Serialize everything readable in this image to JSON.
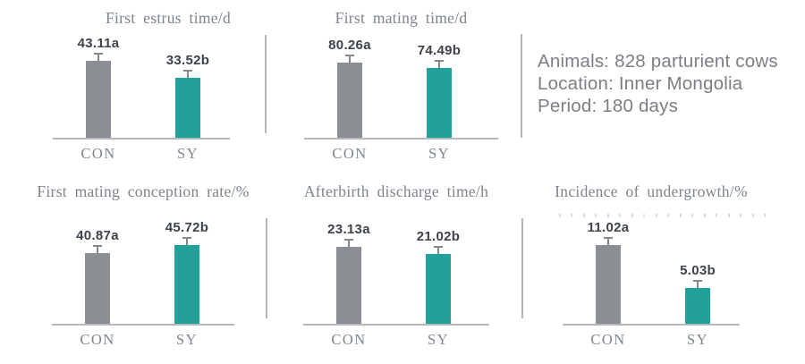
{
  "colors": {
    "bar_con": "#8b8f94",
    "bar_sy": "#22a09a",
    "whisker": "#85898e",
    "baseline": "#b5b9bd",
    "divider": "#b2b6ba",
    "title_text": "#7d848d",
    "value_text": "#3d434a",
    "category_text": "#7f868f",
    "info_text": "#7b7f84"
  },
  "info_panel": {
    "lines": [
      "Animals: 828 parturient cows",
      "Location: Inner Mongolia",
      "Period: 180 days"
    ]
  },
  "chart_data": [
    {
      "type": "bar",
      "title": "First estrus time/d",
      "categories": [
        "CON",
        "SY"
      ],
      "values": [
        43.11,
        33.52
      ],
      "value_labels": [
        "43.11a",
        "33.52b"
      ],
      "significance": [
        "a",
        "b"
      ],
      "ylim": [
        0,
        50
      ],
      "error_bars": true,
      "legend": "none",
      "grid": false
    },
    {
      "type": "bar",
      "title": "First mating time/d",
      "categories": [
        "CON",
        "SY"
      ],
      "values": [
        80.26,
        74.49
      ],
      "value_labels": [
        "80.26a",
        "74.49b"
      ],
      "significance": [
        "a",
        "b"
      ],
      "ylim": [
        0,
        95
      ],
      "error_bars": true,
      "legend": "none",
      "grid": false
    },
    {
      "type": "bar",
      "title": "First mating conception rate/%",
      "categories": [
        "CON",
        "SY"
      ],
      "values": [
        40.87,
        45.72
      ],
      "value_labels": [
        "40.87a",
        "45.72b"
      ],
      "significance": [
        "a",
        "b"
      ],
      "ylim": [
        0,
        52
      ],
      "error_bars": true,
      "legend": "none",
      "grid": false
    },
    {
      "type": "bar",
      "title": "Afterbirth discharge time/h",
      "categories": [
        "CON",
        "SY"
      ],
      "values": [
        23.13,
        21.02
      ],
      "value_labels": [
        "23.13a",
        "21.02b"
      ],
      "significance": [
        "a",
        "b"
      ],
      "ylim": [
        0,
        27
      ],
      "error_bars": true,
      "legend": "none",
      "grid": false
    },
    {
      "type": "bar",
      "title": "Incidence of undergrowth/%",
      "categories": [
        "CON",
        "SY"
      ],
      "values": [
        11.02,
        5.03
      ],
      "value_labels": [
        "11.02a",
        "5.03b"
      ],
      "significance": [
        "a",
        "b"
      ],
      "ylim": [
        0,
        12.5
      ],
      "error_bars": true,
      "legend": "none",
      "grid": false
    }
  ]
}
